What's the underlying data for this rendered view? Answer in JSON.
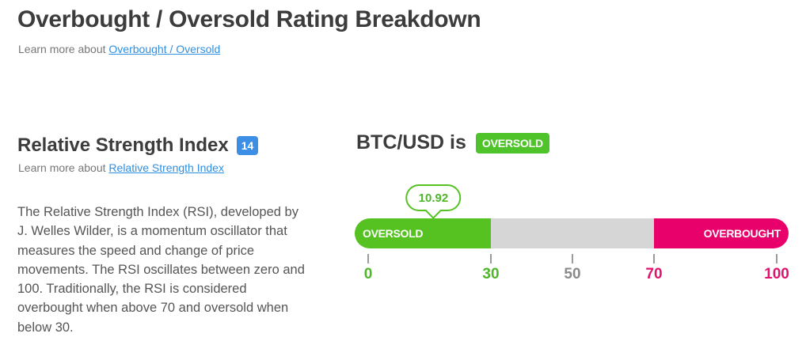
{
  "header": {
    "title": "Overbought / Oversold Rating Breakdown",
    "learn_prefix": "Learn more about",
    "learn_link": "Overbought / Oversold"
  },
  "indicator": {
    "name": "Relative Strength Index",
    "period": "14",
    "learn_prefix": "Learn more about",
    "learn_link": "Relative Strength Index",
    "description": "The Relative Strength Index (RSI), developed by J. Welles Wilder, is a momentum oscillator that measures the speed and change of price movements. The RSI oscillates between zero and 100. Traditionally, the RSI is considered overbought when above 70 and oversold when below 30."
  },
  "status": {
    "pair_text": "BTC/USD is",
    "rating": "OVERSOLD"
  },
  "gauge": {
    "value": 10.92,
    "value_label": "10.92",
    "min": 0,
    "max": 100,
    "oversold_threshold": 30,
    "overbought_threshold": 70,
    "zones": {
      "oversold_label": "OVERSOLD",
      "overbought_label": "OVERBOUGHT"
    },
    "ticks": [
      {
        "value": 0,
        "label": "0",
        "color": "#4fb529"
      },
      {
        "value": 30,
        "label": "30",
        "color": "#4fb529"
      },
      {
        "value": 50,
        "label": "50",
        "color": "#8a8a8a"
      },
      {
        "value": 70,
        "label": "70",
        "color": "#e0126b"
      },
      {
        "value": 100,
        "label": "100",
        "color": "#e0126b"
      }
    ]
  },
  "colors": {
    "oversold": "#55c222",
    "neutral": "#d6d6d6",
    "overbought": "#e8006b",
    "link": "#2f8fe0",
    "badge": "#3d8fe6"
  }
}
